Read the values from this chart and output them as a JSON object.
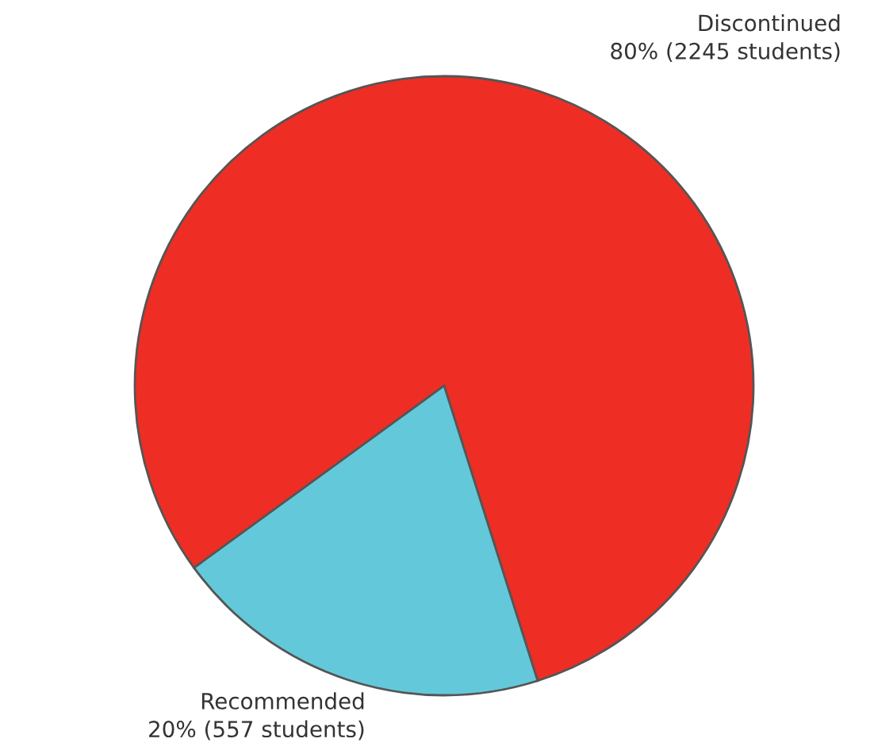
{
  "chart_data": {
    "type": "pie",
    "categories": [
      "Discontinued",
      "Recommended"
    ],
    "values": [
      2245,
      557
    ],
    "value_labels": [
      "80% (2245 students)",
      "20% (557 students)"
    ],
    "colors": [
      "#ee2e24",
      "#63c9da"
    ]
  }
}
